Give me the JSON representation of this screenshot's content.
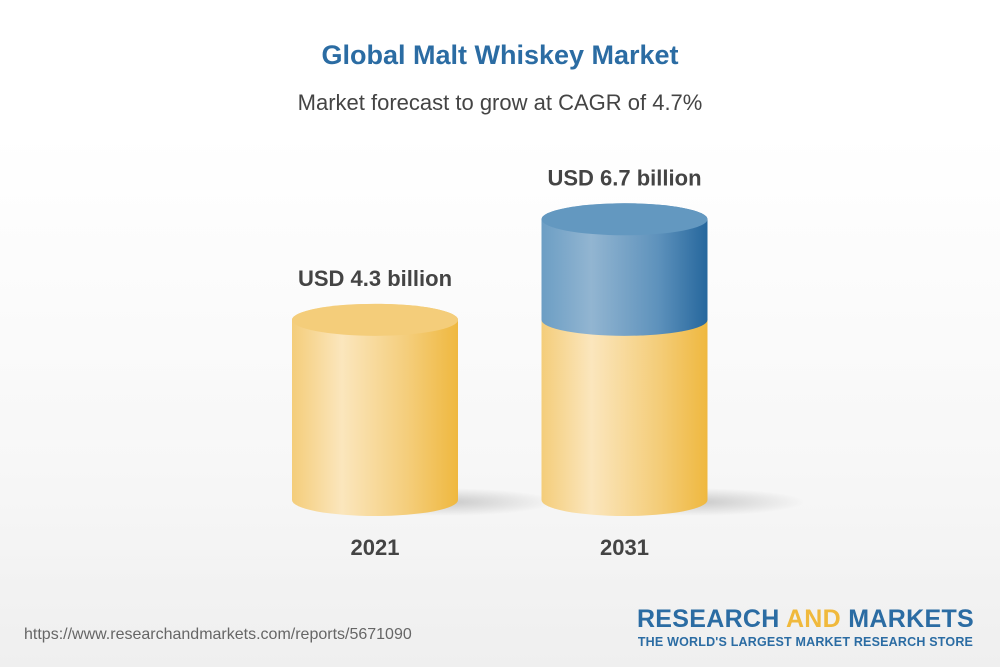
{
  "title": "Global Malt Whiskey Market",
  "subtitle": "Market forecast to grow at CAGR of 4.7%",
  "chart_data": {
    "type": "bar",
    "style": "3d-cylinder",
    "title": "Global Malt Whiskey Market",
    "subtitle": "Market forecast to grow at CAGR of 4.7%",
    "categories": [
      "2021",
      "2031"
    ],
    "values": [
      4.3,
      6.7
    ],
    "data_labels": [
      "USD 4.3 billion",
      "USD 6.7 billion"
    ],
    "unit": "USD billion",
    "colors": {
      "base": "#f0b93c",
      "growth": "#2b6ca3"
    },
    "grid": false
  },
  "footer": {
    "url": "https://www.researchandmarkets.com/reports/5671090",
    "logo_part1": "RESEARCH ",
    "logo_part2": "AND",
    "logo_part3": " MARKETS",
    "tagline": "THE WORLD'S LARGEST MARKET RESEARCH STORE"
  }
}
